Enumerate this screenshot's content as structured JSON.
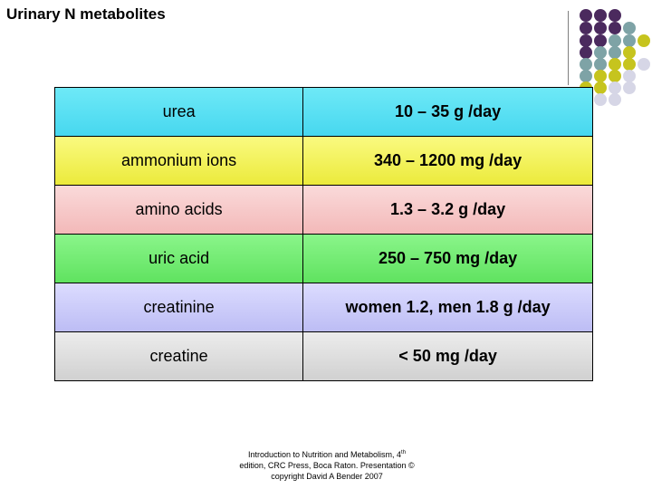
{
  "title": "Urinary N metabolites",
  "rows": [
    {
      "name": "urea",
      "value": "10 – 35 g /day"
    },
    {
      "name": "ammonium ions",
      "value": "340 – 1200 mg /day"
    },
    {
      "name": "amino acids",
      "value": "1.3 – 3.2 g /day"
    },
    {
      "name": "uric acid",
      "value": "250 – 750 mg /day"
    },
    {
      "name": "creatinine",
      "value": "women 1.2, men 1.8 g /day"
    },
    {
      "name": "creatine",
      "value": "< 50 mg /day"
    }
  ],
  "footer": {
    "line1_pre": "Introduction to Nutrition and Metabolism, 4",
    "line1_sup": "th",
    "line2": "edition, CRC Press, Boca Raton. Presentation ©",
    "line3": "copyright David A Bender 2007"
  },
  "colors": {
    "purple": "#4b2a5e",
    "teal": "#7ea3a6",
    "olive": "#c6c41e",
    "lavender": "#d6d6e6"
  }
}
